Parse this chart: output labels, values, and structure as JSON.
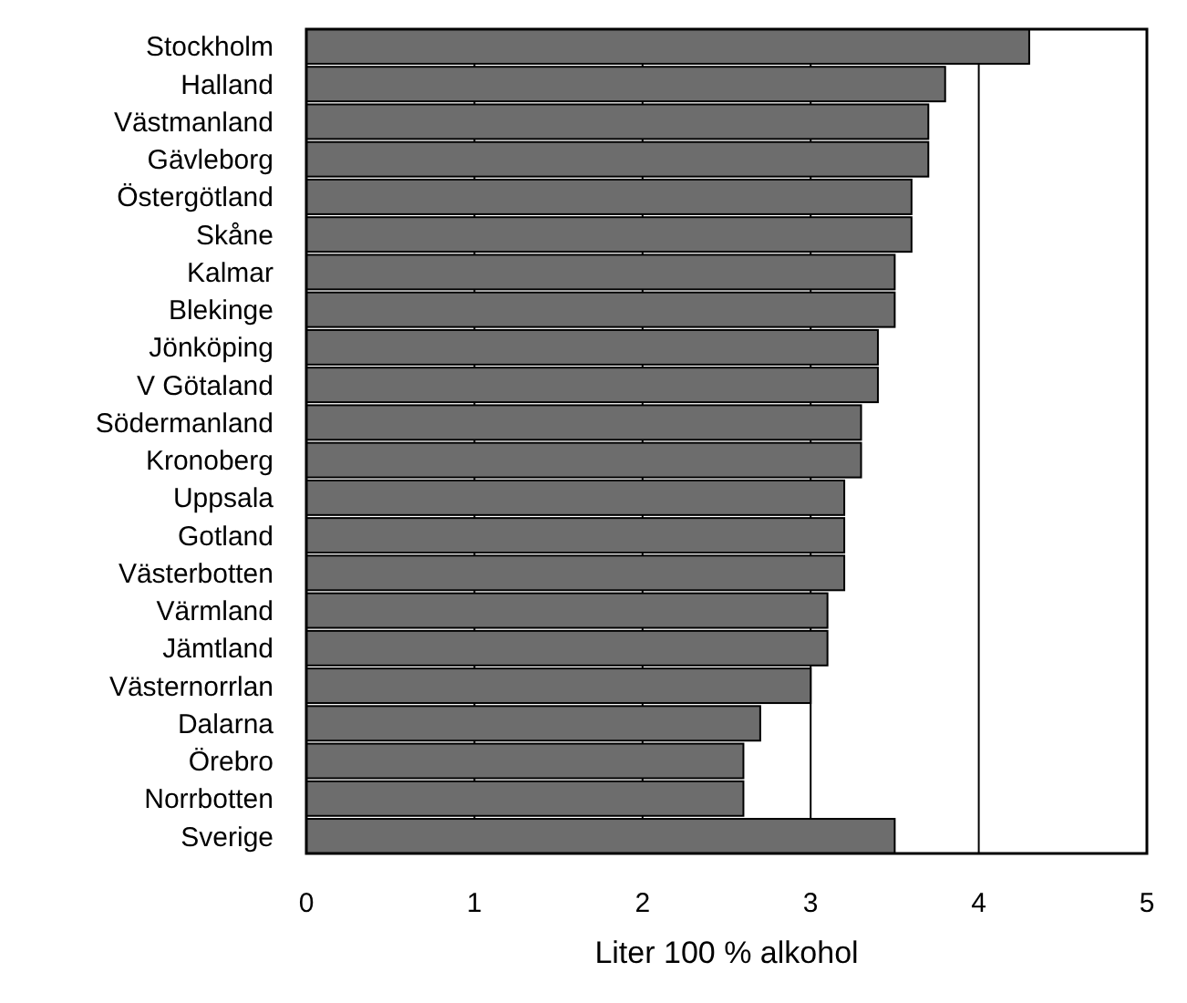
{
  "chart_data": {
    "type": "bar",
    "orientation": "horizontal",
    "xlabel": "Liter 100 % alkohol",
    "categories": [
      "Stockholm",
      "Halland",
      "Västmanland",
      "Gävleborg",
      "Östergötland",
      "Skåne",
      "Kalmar",
      "Blekinge",
      "Jönköping",
      "V Götaland ",
      "Södermanland",
      "Kronoberg",
      "Uppsala",
      "Gotland",
      "Västerbotten",
      "Värmland",
      "Jämtland",
      "Västernorrlan",
      "Dalarna",
      "Örebro",
      "Norrbotten",
      "Sverige"
    ],
    "values": [
      4.3,
      3.8,
      3.7,
      3.7,
      3.6,
      3.6,
      3.5,
      3.5,
      3.4,
      3.4,
      3.3,
      3.3,
      3.2,
      3.2,
      3.2,
      3.1,
      3.1,
      3.0,
      2.7,
      2.6,
      2.6,
      3.5
    ],
    "color": "#6d6d6d",
    "xlim": [
      0,
      5
    ],
    "xticks": [
      0,
      1,
      2,
      3,
      4,
      5
    ],
    "grid": "x"
  }
}
